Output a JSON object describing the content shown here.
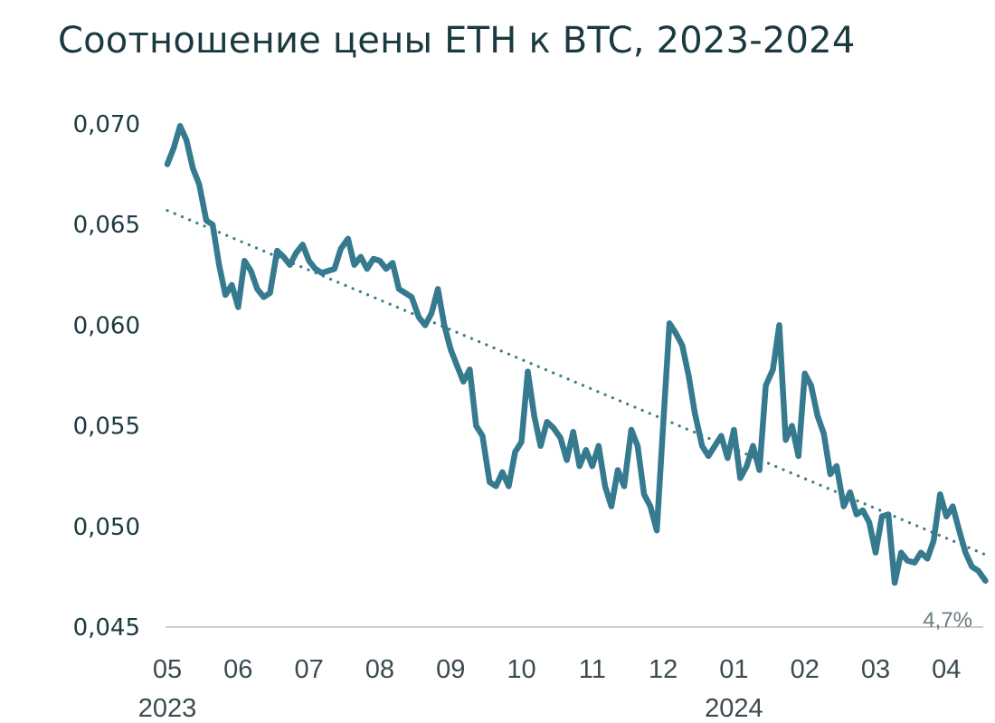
{
  "title": "Соотношение цены ETH к BTC, 2023-2024",
  "colors": {
    "line": "#367a8f",
    "trend": "#3d7d8a",
    "axis": "#c9cfd1",
    "text": "#1b3a40"
  },
  "chart_data": {
    "type": "line",
    "title": "Соотношение цены ETH к BTC, 2023-2024",
    "xlabel": "",
    "ylabel": "",
    "ylim": [
      0.045,
      0.07
    ],
    "y_ticks": [
      "0,070",
      "0,065",
      "0,060",
      "0,055",
      "0,050",
      "0,045"
    ],
    "x_ticks": [
      "05",
      "06",
      "07",
      "08",
      "09",
      "10",
      "11",
      "12",
      "01",
      "02",
      "03",
      "04"
    ],
    "year_labels": [
      {
        "label": "2023",
        "month": 0
      },
      {
        "label": "2024",
        "month": 8
      }
    ],
    "end_label": "4,7%",
    "grid": false,
    "legend": "none",
    "trend": {
      "style": "dotted",
      "start": 0.0657,
      "end": 0.0486
    },
    "series": [
      {
        "x": [
          0.0,
          0.09,
          0.18,
          0.27,
          0.36,
          0.45,
          0.55,
          0.64,
          0.73,
          0.82,
          0.91,
          1.0,
          1.09,
          1.18,
          1.27,
          1.36,
          1.45,
          1.55,
          1.64,
          1.73,
          1.82,
          1.91,
          2.0,
          2.09,
          2.18,
          2.27,
          2.36,
          2.45,
          2.55,
          2.64,
          2.73,
          2.82,
          2.91,
          3.0,
          3.09,
          3.18,
          3.27,
          3.36,
          3.45,
          3.55,
          3.64,
          3.73,
          3.82,
          3.91,
          4.0,
          4.09,
          4.18,
          4.27,
          4.36,
          4.45,
          4.55,
          4.64,
          4.73,
          4.82,
          4.91,
          5.0,
          5.09,
          5.18,
          5.27,
          5.36,
          5.45,
          5.55,
          5.64,
          5.73,
          5.82,
          5.91,
          6.0,
          6.09,
          6.18,
          6.27,
          6.36,
          6.45,
          6.55,
          6.64,
          6.73,
          6.82,
          6.91,
          7.0,
          7.09,
          7.18,
          7.27,
          7.36,
          7.45,
          7.55,
          7.64,
          7.73,
          7.82,
          7.91,
          8.0,
          8.09,
          8.18,
          8.27,
          8.36,
          8.45,
          8.55,
          8.64,
          8.73,
          8.82,
          8.91,
          9.0,
          9.09,
          9.18,
          9.27,
          9.36,
          9.45,
          9.55,
          9.64,
          9.73,
          9.82,
          9.91,
          10.0,
          10.09,
          10.18,
          10.27,
          10.36,
          10.45,
          10.55,
          10.64,
          10.73,
          10.82,
          10.91,
          11.0,
          11.09,
          11.18,
          11.27,
          11.36,
          11.45,
          11.55
        ],
        "values": [
          0.068,
          0.0688,
          0.0699,
          0.0692,
          0.0678,
          0.067,
          0.0652,
          0.065,
          0.063,
          0.0615,
          0.062,
          0.0609,
          0.0632,
          0.0627,
          0.0618,
          0.0614,
          0.0616,
          0.0637,
          0.0634,
          0.063,
          0.0636,
          0.064,
          0.0632,
          0.0628,
          0.0626,
          0.0627,
          0.0628,
          0.0638,
          0.0643,
          0.063,
          0.0634,
          0.0628,
          0.0633,
          0.0632,
          0.0628,
          0.0631,
          0.0618,
          0.0616,
          0.0614,
          0.0604,
          0.06,
          0.0606,
          0.0618,
          0.06,
          0.0588,
          0.058,
          0.0572,
          0.0578,
          0.055,
          0.0545,
          0.0522,
          0.052,
          0.0527,
          0.052,
          0.0537,
          0.0542,
          0.0577,
          0.0555,
          0.054,
          0.0552,
          0.0549,
          0.0544,
          0.0533,
          0.0547,
          0.053,
          0.0538,
          0.053,
          0.054,
          0.052,
          0.051,
          0.0528,
          0.052,
          0.0548,
          0.054,
          0.0516,
          0.051,
          0.0498,
          0.055,
          0.0601,
          0.0596,
          0.059,
          0.0575,
          0.0556,
          0.054,
          0.0535,
          0.054,
          0.0545,
          0.0534,
          0.0548,
          0.0524,
          0.053,
          0.054,
          0.0528,
          0.057,
          0.0578,
          0.06,
          0.0543,
          0.055,
          0.0535,
          0.0576,
          0.057,
          0.0555,
          0.0546,
          0.0526,
          0.053,
          0.051,
          0.0517,
          0.0506,
          0.0508,
          0.0502,
          0.0487,
          0.0505,
          0.0506,
          0.0472,
          0.0487,
          0.0483,
          0.0482,
          0.0487,
          0.0484,
          0.0493,
          0.0516,
          0.0505,
          0.051,
          0.0498,
          0.0487,
          0.048,
          0.0478,
          0.0473
        ]
      }
    ]
  }
}
